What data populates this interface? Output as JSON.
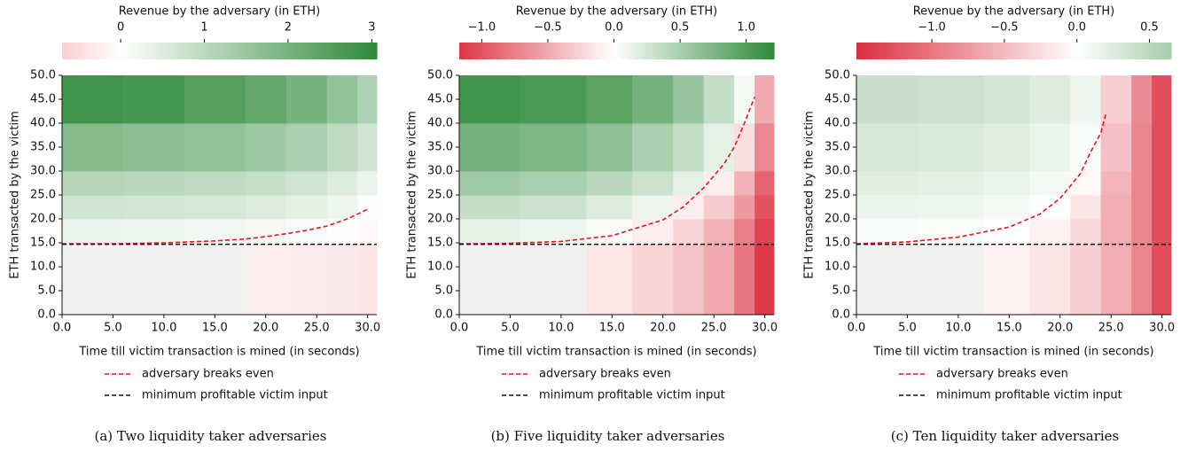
{
  "chart_data": [
    {
      "type": "heatmap",
      "caption": "(a) Two liquidity taker adversaries",
      "colorbar_label": "Revenue by the adversary (in ETH)",
      "clim": [
        -0.7,
        3.06
      ],
      "cticks": [
        0,
        1,
        2,
        3
      ],
      "cmap": [
        "#dc2f3f",
        "#ffffff",
        "#2f8a3a"
      ],
      "null_color": "#f0f0f0",
      "xlabel": "Time till victim transaction is mined (in seconds)",
      "ylabel": "ETH transacted by the victim",
      "xlim": [
        0,
        30.9
      ],
      "ylim": [
        0,
        50
      ],
      "xticks": [
        {
          "value": 0,
          "label": "0.0"
        },
        {
          "value": 5,
          "label": "5.0"
        },
        {
          "value": 10,
          "label": "10.0"
        },
        {
          "value": 15,
          "label": "15.0"
        },
        {
          "value": 20,
          "label": "20.0"
        },
        {
          "value": 25,
          "label": "25.0"
        },
        {
          "value": 30,
          "label": "30.0"
        }
      ],
      "yticks": [
        {
          "value": 0,
          "label": "0.0"
        },
        {
          "value": 5,
          "label": "5.0"
        },
        {
          "value": 10,
          "label": "10.0"
        },
        {
          "value": 15,
          "label": "15.0"
        },
        {
          "value": 20,
          "label": "20.0"
        },
        {
          "value": 25,
          "label": "25.0"
        },
        {
          "value": 30,
          "label": "30.0"
        },
        {
          "value": 35,
          "label": "35.0"
        },
        {
          "value": 40,
          "label": "40.0"
        },
        {
          "value": 45,
          "label": "45.0"
        },
        {
          "value": 50,
          "label": "50.0"
        }
      ],
      "x_edges": [
        0,
        6,
        12,
        18,
        22,
        26,
        29,
        30.9
      ],
      "y_edges": [
        0,
        14.7,
        20,
        25,
        30,
        40,
        50
      ],
      "z": [
        [
          null,
          null,
          null,
          -0.25,
          -0.3,
          -0.35,
          -0.4
        ],
        [
          0.3,
          0.25,
          0.2,
          0.15,
          0.1,
          0.02,
          -0.1
        ],
        [
          0.7,
          0.65,
          0.6,
          0.5,
          0.4,
          0.25,
          0.05
        ],
        [
          1.1,
          1.05,
          0.95,
          0.85,
          0.7,
          0.5,
          0.3
        ],
        [
          1.8,
          1.7,
          1.6,
          1.45,
          1.25,
          0.95,
          0.7
        ],
        [
          2.8,
          2.7,
          2.5,
          2.3,
          2.0,
          1.6,
          1.2
        ]
      ],
      "series": [
        {
          "name": "adversary breaks even",
          "color": "#e8141c",
          "x": [
            0,
            5,
            10,
            15,
            18,
            20,
            22,
            24,
            26,
            28,
            30
          ],
          "values": [
            14.8,
            14.8,
            15.0,
            15.4,
            15.8,
            16.3,
            16.9,
            17.6,
            18.5,
            20,
            22
          ]
        },
        {
          "name": "minimum profitable victim input",
          "color": "#111111",
          "x": [
            0,
            30.9
          ],
          "values": [
            14.7,
            14.7
          ]
        }
      ]
    },
    {
      "type": "heatmap",
      "caption": "(b) Five liquidity taker adversaries",
      "colorbar_label": "Revenue by the adversary (in ETH)",
      "clim": [
        -1.17,
        1.21
      ],
      "cticks": [
        {
          "value": -1,
          "label": "−1.0"
        },
        {
          "value": -0.5,
          "label": "−0.5"
        },
        {
          "value": 0,
          "label": "0.0"
        },
        {
          "value": 0.5,
          "label": "0.5"
        },
        {
          "value": 1,
          "label": "1.0"
        }
      ],
      "cmap": [
        "#dc2f3f",
        "#ffffff",
        "#2f8a3a"
      ],
      "null_color": "#f0f0f0",
      "xlabel": "Time till victim transaction is mined (in seconds)",
      "ylabel": "ETH transacted by the victim",
      "xlim": [
        0,
        30.9
      ],
      "ylim": [
        0,
        50
      ],
      "xticks": [
        {
          "value": 0,
          "label": "0.0"
        },
        {
          "value": 5,
          "label": "5.0"
        },
        {
          "value": 10,
          "label": "10.0"
        },
        {
          "value": 15,
          "label": "15.0"
        },
        {
          "value": 20,
          "label": "20.0"
        },
        {
          "value": 25,
          "label": "25.0"
        },
        {
          "value": 30,
          "label": "30.0"
        }
      ],
      "yticks": [
        {
          "value": 0,
          "label": "0.0"
        },
        {
          "value": 5,
          "label": "5.0"
        },
        {
          "value": 10,
          "label": "10.0"
        },
        {
          "value": 15,
          "label": "15.0"
        },
        {
          "value": 20,
          "label": "20.0"
        },
        {
          "value": 25,
          "label": "25.0"
        },
        {
          "value": 30,
          "label": "30.0"
        },
        {
          "value": 35,
          "label": "35.0"
        },
        {
          "value": 40,
          "label": "40.0"
        },
        {
          "value": 45,
          "label": "45.0"
        },
        {
          "value": 50,
          "label": "50.0"
        }
      ],
      "x_edges": [
        0,
        6,
        12.5,
        17,
        21,
        24,
        27,
        29,
        30.9
      ],
      "y_edges": [
        0,
        14.7,
        20,
        25,
        30,
        40,
        50
      ],
      "z": [
        [
          null,
          null,
          -0.15,
          -0.25,
          -0.35,
          -0.5,
          -0.8,
          -1.15
        ],
        [
          0.15,
          0.1,
          0.03,
          -0.1,
          -0.25,
          -0.45,
          -0.75,
          -1.1
        ],
        [
          0.35,
          0.3,
          0.2,
          0.1,
          -0.1,
          -0.3,
          -0.6,
          -1.0
        ],
        [
          0.55,
          0.5,
          0.4,
          0.3,
          0.15,
          -0.1,
          -0.45,
          -0.9
        ],
        [
          0.8,
          0.75,
          0.65,
          0.5,
          0.35,
          0.15,
          -0.2,
          -0.7
        ],
        [
          1.1,
          1.05,
          0.95,
          0.8,
          0.6,
          0.35,
          0.05,
          -0.5
        ]
      ],
      "series": [
        {
          "name": "adversary breaks even",
          "color": "#e8141c",
          "x": [
            0,
            5,
            10,
            15,
            20,
            22,
            24,
            26,
            27,
            28,
            29
          ],
          "values": [
            14.8,
            14.9,
            15.3,
            16.5,
            19.8,
            22.5,
            26.5,
            31.5,
            35,
            40,
            45.5
          ]
        },
        {
          "name": "minimum profitable victim input",
          "color": "#111111",
          "x": [
            0,
            30.9
          ],
          "values": [
            14.7,
            14.7
          ]
        }
      ]
    },
    {
      "type": "heatmap",
      "caption": "(c) Ten liquidity taker adversaries",
      "colorbar_label": "Revenue by the adversary (in ETH)",
      "clim": [
        -1.52,
        0.65
      ],
      "cticks": [
        {
          "value": -1,
          "label": "−1.0"
        },
        {
          "value": -0.5,
          "label": "−0.5"
        },
        {
          "value": 0,
          "label": "0.0"
        },
        {
          "value": 0.5,
          "label": "0.5"
        }
      ],
      "cmap": [
        "#dc2f3f",
        "#ffffff",
        "#2f8a3a"
      ],
      "null_color": "#f0f0f0",
      "xlabel": "Time till victim transaction is mined (in seconds)",
      "ylabel": "ETH transacted by the victim",
      "xlim": [
        0,
        30.9
      ],
      "ylim": [
        0,
        50
      ],
      "xticks": [
        {
          "value": 0,
          "label": "0.0"
        },
        {
          "value": 5,
          "label": "5.0"
        },
        {
          "value": 10,
          "label": "10.0"
        },
        {
          "value": 15,
          "label": "15.0"
        },
        {
          "value": 20,
          "label": "20.0"
        },
        {
          "value": 25,
          "label": "25.0"
        },
        {
          "value": 30,
          "label": "30.0"
        }
      ],
      "yticks": [
        {
          "value": 0,
          "label": "0.0"
        },
        {
          "value": 5,
          "label": "5.0"
        },
        {
          "value": 10,
          "label": "10.0"
        },
        {
          "value": 15,
          "label": "15.0"
        },
        {
          "value": 20,
          "label": "20.0"
        },
        {
          "value": 25,
          "label": "25.0"
        },
        {
          "value": 30,
          "label": "30.0"
        },
        {
          "value": 35,
          "label": "35.0"
        },
        {
          "value": 40,
          "label": "40.0"
        },
        {
          "value": 45,
          "label": "45.0"
        },
        {
          "value": 50,
          "label": "50.0"
        }
      ],
      "x_edges": [
        0,
        6,
        12.5,
        17,
        21,
        24,
        27,
        29,
        30.9
      ],
      "y_edges": [
        0,
        14.7,
        20,
        25,
        30,
        40,
        50
      ],
      "z": [
        [
          null,
          null,
          -0.1,
          -0.2,
          -0.35,
          -0.6,
          -0.9,
          -1.3
        ],
        [
          0.05,
          0.03,
          0,
          -0.1,
          -0.3,
          -0.6,
          -0.9,
          -1.3
        ],
        [
          0.15,
          0.12,
          0.08,
          0,
          -0.2,
          -0.6,
          -0.9,
          -1.3
        ],
        [
          0.22,
          0.2,
          0.15,
          0.08,
          -0.05,
          -0.55,
          -0.9,
          -1.3
        ],
        [
          0.3,
          0.28,
          0.22,
          0.15,
          0.05,
          -0.45,
          -0.9,
          -1.3
        ],
        [
          0.4,
          0.38,
          0.32,
          0.25,
          0.12,
          -0.35,
          -0.85,
          -1.3
        ]
      ],
      "series": [
        {
          "name": "adversary breaks even",
          "color": "#e8141c",
          "x": [
            0,
            5,
            10,
            15,
            18,
            20,
            22,
            23,
            24,
            24.5
          ],
          "values": [
            14.8,
            15.2,
            16.2,
            18.3,
            21,
            24.3,
            29.5,
            34,
            38,
            42
          ]
        },
        {
          "name": "minimum profitable victim input",
          "color": "#111111",
          "x": [
            0,
            30.9
          ],
          "values": [
            14.7,
            14.7
          ]
        }
      ]
    }
  ]
}
